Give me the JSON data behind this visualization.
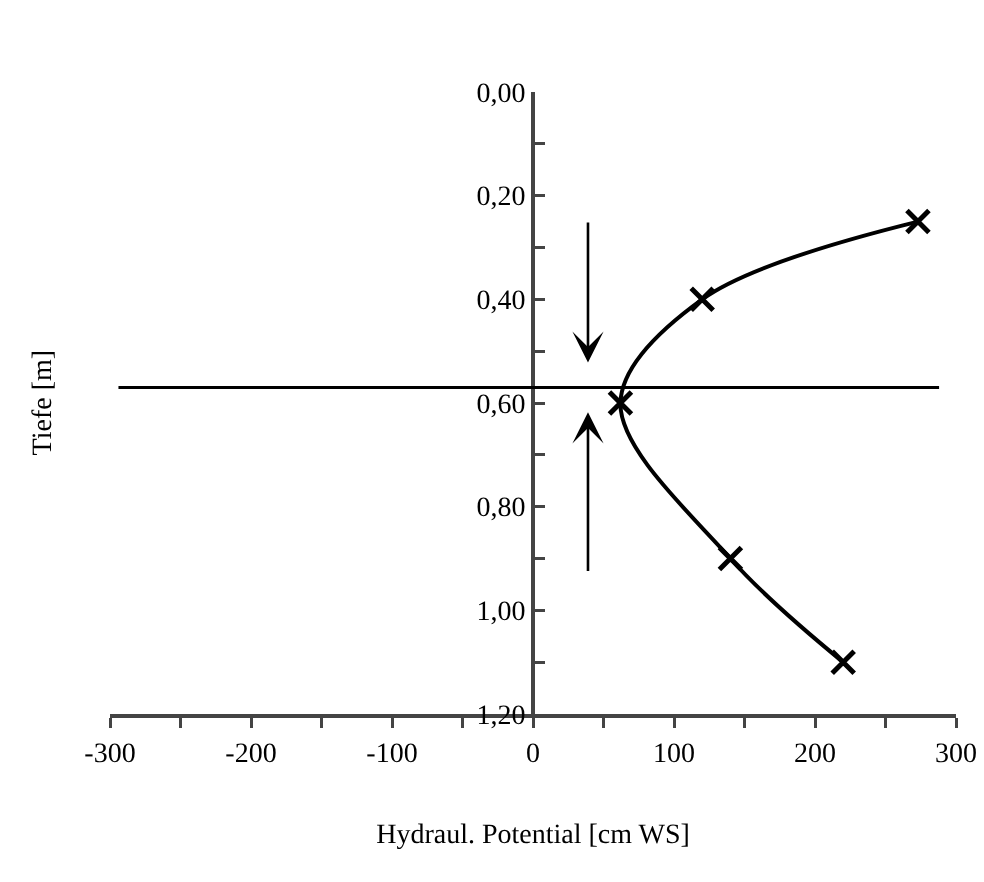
{
  "chart_data": {
    "type": "line",
    "xlabel": "Hydraul. Potential [cm WS]",
    "ylabel": "Tiefe [m]",
    "x": [
      273,
      120,
      62,
      140,
      220
    ],
    "series": [
      {
        "color": "#000000",
        "values": [
          0.25,
          0.4,
          0.6,
          0.9,
          1.1
        ]
      }
    ],
    "xlim": [
      -300,
      300
    ],
    "xticks": [
      -300,
      {
        "value": -250,
        "label": null
      },
      -200,
      {
        "value": -150,
        "label": null
      },
      -100,
      {
        "value": -50,
        "label": null
      },
      0,
      {
        "value": 50,
        "label": null
      },
      100,
      {
        "value": 150,
        "label": null
      },
      200,
      {
        "value": 250,
        "label": null
      },
      300
    ],
    "ylim": [
      1.2,
      0
    ],
    "yticks": [
      {
        "value": 0,
        "label": "0,00"
      },
      {
        "value": 0.1,
        "label": null
      },
      {
        "value": 0.2,
        "label": "0,20"
      },
      {
        "value": 0.3,
        "label": null
      },
      {
        "value": 0.4,
        "label": "0,40"
      },
      {
        "value": 0.5,
        "label": null
      },
      {
        "value": 0.6,
        "label": "0,60"
      },
      {
        "value": 0.7,
        "label": null
      },
      {
        "value": 0.8,
        "label": "0,80"
      },
      {
        "value": 0.9,
        "label": null
      },
      {
        "value": 1,
        "label": "1,00"
      },
      {
        "value": 1.1,
        "label": null
      },
      {
        "value": 1.2,
        "label": "1,20"
      }
    ],
    "ref_lines": [
      {
        "axis": "y",
        "value": 0.57,
        "color": "#000000"
      }
    ],
    "marker": "cross",
    "line_style": "solid",
    "grid": false
  }
}
